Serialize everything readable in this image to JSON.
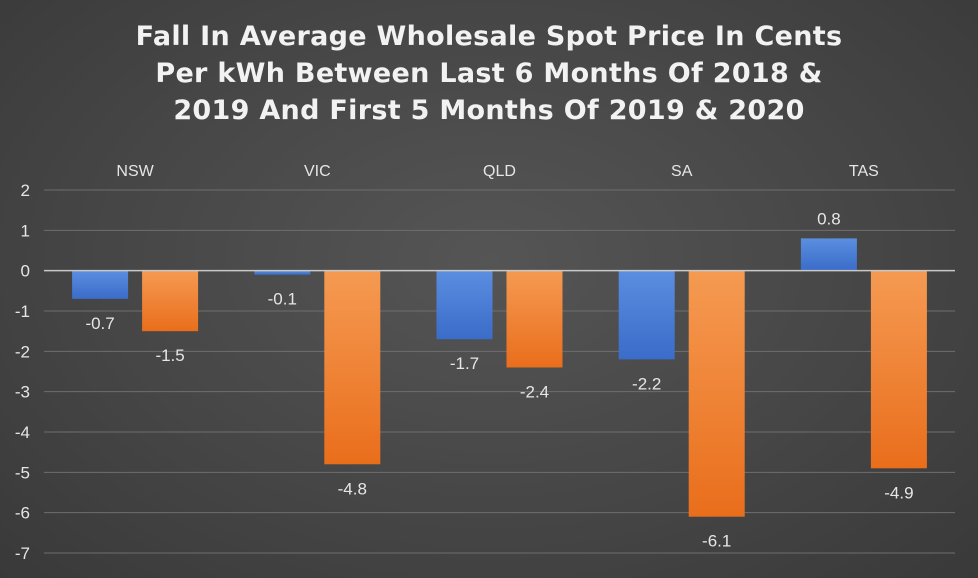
{
  "chart_data": {
    "type": "bar",
    "title_lines": [
      "Fall In Average Wholesale Spot Price In Cents",
      "Per kWh Between Last 6 Months Of 2018 &",
      "2019 And First 5 Months Of 2019 & 2020"
    ],
    "categories": [
      "NSW",
      "VIC",
      "QLD",
      "SA",
      "TAS"
    ],
    "series": [
      {
        "values": [
          -0.7,
          -0.1,
          -1.7,
          -2.2,
          0.8
        ]
      },
      {
        "values": [
          -1.5,
          -4.8,
          -2.4,
          -6.1,
          -4.9
        ]
      }
    ],
    "xlabel": "",
    "ylabel": "",
    "ylim": [
      -7,
      2
    ],
    "yticks": [
      2,
      1,
      0,
      -1,
      -2,
      -3,
      -4,
      -5,
      -6,
      -7
    ],
    "category_labels_position": "top",
    "grid": true,
    "legend": "none",
    "colors": {
      "series_1_top": "#5b8ee0",
      "series_1_bottom": "#3a6cc9",
      "series_2_top": "#f59a52",
      "series_2_bottom": "#e96e1c",
      "grid": "#6e6e6e",
      "axis": "#c8c8c8"
    }
  }
}
